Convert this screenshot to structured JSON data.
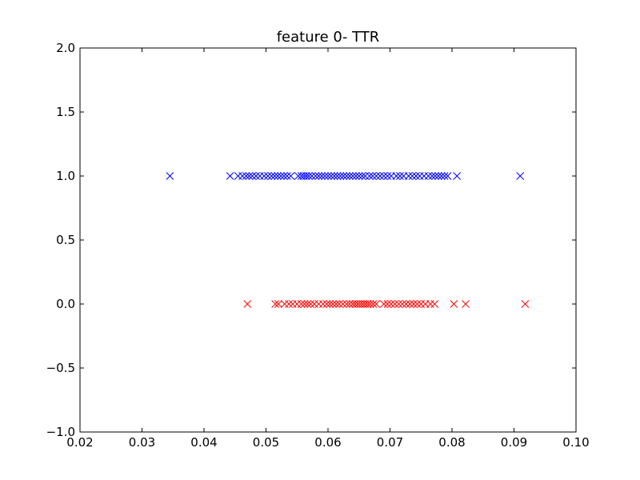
{
  "chart_data": {
    "type": "scatter",
    "title": "feature 0- TTR",
    "xlabel": "",
    "ylabel": "",
    "xlim": [
      0.02,
      0.1
    ],
    "ylim": [
      -1.0,
      2.0
    ],
    "xticks": [
      "0.02",
      "0.03",
      "0.04",
      "0.05",
      "0.06",
      "0.07",
      "0.08",
      "0.09",
      "0.10"
    ],
    "yticks": [
      "−1.0",
      "−0.5",
      "0.0",
      "0.5",
      "1.0",
      "1.5",
      "2.0"
    ],
    "xtick_values": [
      0.02,
      0.03,
      0.04,
      0.05,
      0.06,
      0.07,
      0.08,
      0.09,
      0.1
    ],
    "ytick_values": [
      -1.0,
      -0.5,
      0.0,
      0.5,
      1.0,
      1.5,
      2.0
    ],
    "grid": false,
    "marker": "x",
    "series": [
      {
        "color": "#0000ff",
        "y": 1.0,
        "x": [
          0.0345,
          0.0442,
          0.0455,
          0.0462,
          0.0468,
          0.0473,
          0.0478,
          0.0484,
          0.049,
          0.0497,
          0.0503,
          0.0509,
          0.0514,
          0.0519,
          0.0524,
          0.0529,
          0.0534,
          0.054,
          0.0552,
          0.0557,
          0.0561,
          0.0565,
          0.0569,
          0.0574,
          0.058,
          0.0585,
          0.059,
          0.0595,
          0.06,
          0.0605,
          0.061,
          0.0615,
          0.062,
          0.0625,
          0.063,
          0.0635,
          0.064,
          0.0645,
          0.065,
          0.0655,
          0.066,
          0.0667,
          0.0672,
          0.0678,
          0.0684,
          0.069,
          0.0696,
          0.0702,
          0.071,
          0.0716,
          0.0722,
          0.073,
          0.0736,
          0.0742,
          0.0748,
          0.0755,
          0.0762,
          0.0768,
          0.0773,
          0.0778,
          0.0783,
          0.0788,
          0.0793,
          0.0808,
          0.091
        ]
      },
      {
        "color": "#ff0000",
        "y": 0.0,
        "x": [
          0.047,
          0.0515,
          0.052,
          0.053,
          0.0537,
          0.0543,
          0.055,
          0.0557,
          0.0562,
          0.0567,
          0.0572,
          0.0578,
          0.0585,
          0.0592,
          0.0598,
          0.0603,
          0.0608,
          0.0613,
          0.0618,
          0.0624,
          0.063,
          0.0635,
          0.064,
          0.0644,
          0.0648,
          0.0652,
          0.0656,
          0.066,
          0.0664,
          0.0668,
          0.0673,
          0.0678,
          0.069,
          0.0696,
          0.0702,
          0.0708,
          0.0714,
          0.072,
          0.0726,
          0.0732,
          0.0738,
          0.0744,
          0.075,
          0.0757,
          0.0765,
          0.0772,
          0.0803,
          0.0822,
          0.0918
        ]
      }
    ]
  }
}
